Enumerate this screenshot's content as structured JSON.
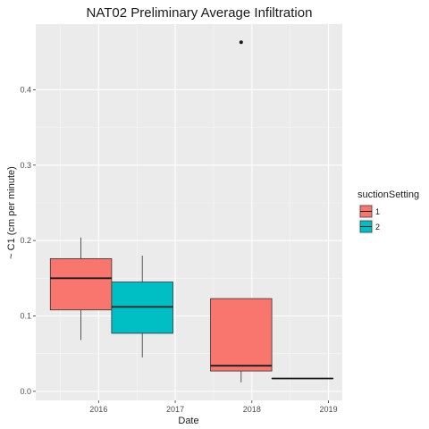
{
  "chart_data": {
    "type": "box",
    "title": "NAT02 Preliminary Average Infiltration",
    "xlabel": "Date",
    "ylabel": "~ C1 (cm per minute)",
    "x_ticks": [
      "2016",
      "2017",
      "2018",
      "2019"
    ],
    "x_tick_values": [
      2016,
      2017,
      2018,
      2019
    ],
    "xlim": [
      2015.18,
      2019.18
    ],
    "y_ticks": [
      "0.0",
      "0.1",
      "0.2",
      "0.3",
      "0.4"
    ],
    "y_tick_values": [
      0.0,
      0.1,
      0.2,
      0.3,
      0.4
    ],
    "ylim": [
      -0.012,
      0.487
    ],
    "grid": true,
    "panel_background": "#ebebeb",
    "legend": {
      "title": "suctionSetting",
      "placement": "right",
      "entries": [
        {
          "label": "1",
          "color": "#f8766d"
        },
        {
          "label": "2",
          "color": "#00bfc4"
        }
      ]
    },
    "boxes": [
      {
        "group": "1",
        "x_start": 2015.37,
        "x_end": 2016.17,
        "whisker_low": 0.068,
        "q1": 0.108,
        "median": 0.15,
        "q3": 0.176,
        "whisker_high": 0.204,
        "outliers": []
      },
      {
        "group": "2",
        "x_start": 2016.17,
        "x_end": 2016.97,
        "whisker_low": 0.045,
        "q1": 0.077,
        "median": 0.112,
        "q3": 0.145,
        "whisker_high": 0.18,
        "outliers": []
      },
      {
        "group": "1",
        "x_start": 2017.46,
        "x_end": 2018.26,
        "whisker_low": 0.012,
        "q1": 0.027,
        "median": 0.034,
        "q3": 0.123,
        "whisker_high": 0.123,
        "outliers": [
          0.463
        ]
      },
      {
        "group": "2",
        "x_start": 2018.26,
        "x_end": 2019.06,
        "whisker_low": 0.017,
        "q1": 0.017,
        "median": 0.017,
        "q3": 0.017,
        "whisker_high": 0.017,
        "outliers": []
      }
    ]
  }
}
